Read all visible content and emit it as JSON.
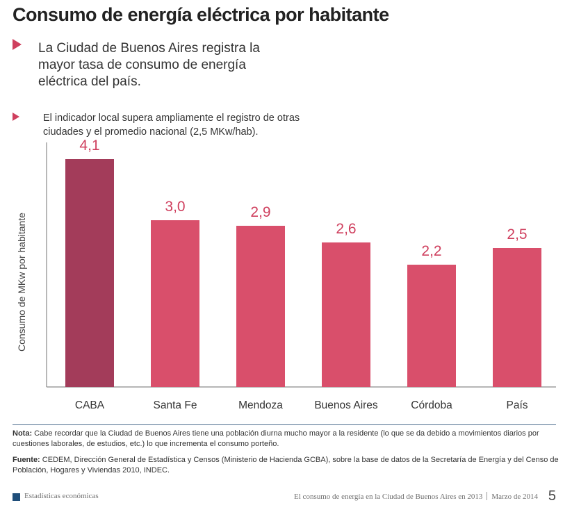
{
  "title": "Consumo de energía eléctrica por habitante",
  "lead": "La Ciudad de Buenos Aires registra la mayor tasa de consumo de energía eléctrica del país.",
  "subtitle": "El indicador local supera ampliamente el registro de otras ciudades y el promedio nacional (2,5 MKw/hab).",
  "chart_data": {
    "type": "bar",
    "categories": [
      "CABA",
      "Santa Fe",
      "Mendoza",
      "Buenos Aires",
      "Córdoba",
      "País"
    ],
    "values": [
      4.1,
      3.0,
      2.9,
      2.6,
      2.2,
      2.5
    ],
    "value_labels": [
      "4,1",
      "3,0",
      "2,9",
      "2,6",
      "2,2",
      "2,5"
    ],
    "ylabel": "Consumo de MKw por habitante",
    "ylim": [
      0,
      4.3
    ],
    "grid": false,
    "colors": {
      "highlight": "#a33c5a",
      "default": "#d94f6b",
      "value_label": "#cf3f5e",
      "axis": "#8a8a8a"
    },
    "highlight_category": "CABA"
  },
  "note": {
    "label": "Nota:",
    "text": "Cabe recordar que la Ciudad de Buenos Aires tiene una población diurna mucho mayor a la residente (lo que se da debido a movimientos diarios por cuestiones laborales, de estudios, etc.) lo que incrementa el consumo porteño."
  },
  "source": {
    "label": "Fuente:",
    "text": "CEDEM, Dirección General de Estadística y Censos (Ministerio de Hacienda GCBA), sobre la base de datos de la Secretaría de Energía y del Censo de Población, Hogares y Viviendas 2010, INDEC."
  },
  "footer": {
    "section": "Estadísticas económicas",
    "doc_title": "El consumo de energía en la Ciudad de Buenos Aires en 2013",
    "date": "Marzo de 2014",
    "page": "5"
  }
}
